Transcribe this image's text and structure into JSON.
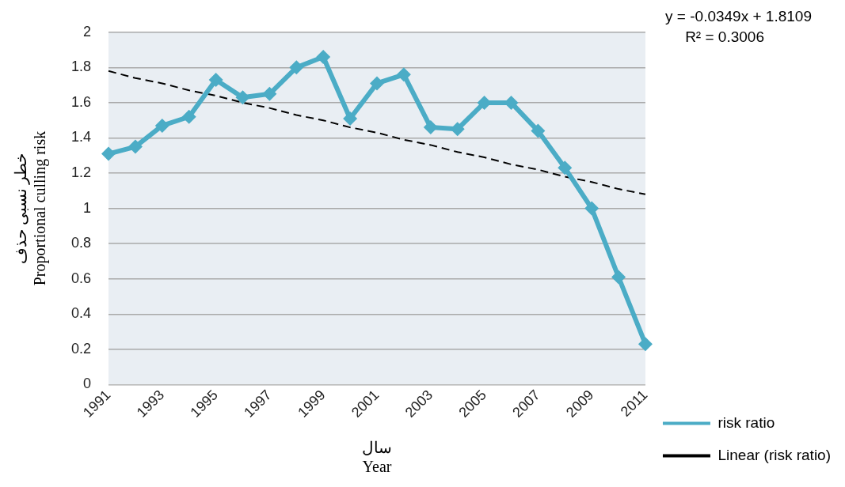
{
  "chart_data": {
    "type": "line",
    "xlabel": "سال\nYear",
    "ylabel": "خطر نسبی حذف\nProportional culling risk",
    "categories": [
      "1991",
      null,
      "1993",
      null,
      "1995",
      null,
      "1997",
      null,
      "1999",
      null,
      "2001",
      null,
      "2003",
      null,
      "2005",
      null,
      "2007",
      null,
      "2009",
      null,
      "2011"
    ],
    "series": [
      {
        "name": "risk ratio",
        "color": "#4bacc6",
        "marker": "diamond",
        "line_style": "solid",
        "values": [
          1.31,
          1.35,
          1.47,
          1.52,
          1.73,
          1.63,
          1.65,
          1.8,
          1.86,
          1.51,
          1.71,
          1.76,
          1.46,
          1.45,
          1.6,
          1.6,
          1.44,
          1.23,
          1.0,
          0.61,
          0.23
        ]
      },
      {
        "name": "Linear (risk ratio)",
        "color": "#000000",
        "marker": "none",
        "line_style": "dashed",
        "values": [
          1.78,
          1.74,
          1.71,
          1.67,
          1.64,
          1.6,
          1.57,
          1.53,
          1.5,
          1.46,
          1.43,
          1.39,
          1.36,
          1.32,
          1.29,
          1.25,
          1.22,
          1.18,
          1.15,
          1.11,
          1.08
        ]
      }
    ],
    "ylim": [
      0,
      2
    ],
    "yticks": [
      0,
      0.2,
      0.4,
      0.6,
      0.8,
      1,
      1.2,
      1.4,
      1.6,
      1.8,
      2
    ],
    "grid": "y",
    "legend": "right",
    "annotations": [
      "y = -0.0349x + 1.8109",
      "R² = 0.3006"
    ]
  }
}
